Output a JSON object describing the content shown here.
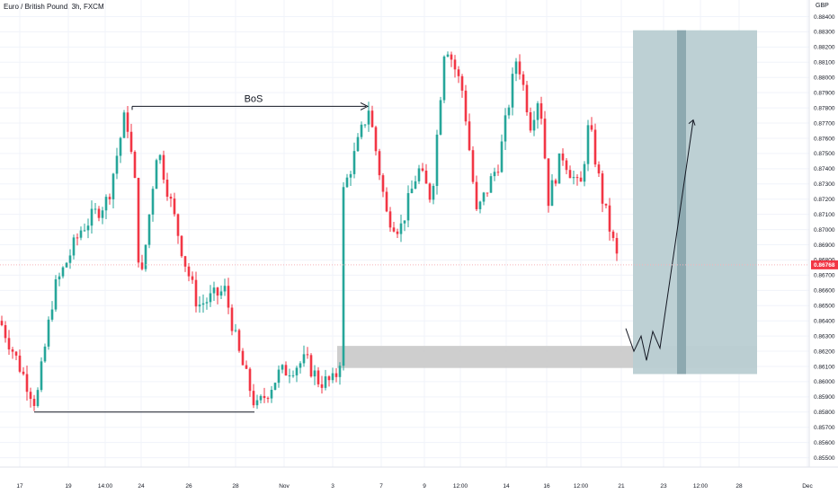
{
  "header": {
    "title": "Euro / British Pound, 3h, FXCM",
    "currency": "GBP"
  },
  "annotations": {
    "bos": "BoS"
  },
  "price_axis": {
    "labels": [
      "0.88400",
      "0.88300",
      "0.88200",
      "0.88100",
      "0.88000",
      "0.87900",
      "0.87800",
      "0.87700",
      "0.87600",
      "0.87500",
      "0.87400",
      "0.87300",
      "0.87200",
      "0.87100",
      "0.87000",
      "0.86900",
      "0.86800",
      "0.86700",
      "0.86600",
      "0.86500",
      "0.86400",
      "0.86300",
      "0.86200",
      "0.86100",
      "0.86000",
      "0.85900",
      "0.85800",
      "0.85700",
      "0.85600",
      "0.85500"
    ],
    "current_price": "0.86768"
  },
  "date_axis": {
    "labels": [
      "17",
      "19",
      "14:00",
      "24",
      "26",
      "28",
      "Nov",
      "3",
      "7",
      "9",
      "12:00",
      "14",
      "16",
      "12:00",
      "21",
      "23",
      "12:00",
      "28",
      "Dec"
    ]
  },
  "colors": {
    "up": "#26a69a",
    "down": "#f23645",
    "position_box": "#b9cdd2",
    "position_bar": "#8da9b0",
    "demand_zone": "#c9c9c9",
    "current_price_tag": "#f23645"
  },
  "chart_data": {
    "type": "candlestick",
    "symbol": "Euro / British Pound",
    "timeframe": "3h",
    "source": "FXCM",
    "price_range": [
      0.8548,
      0.8845
    ],
    "last_price": 0.86768,
    "close_path": [
      {
        "date": "Oct 16",
        "close": 0.864
      },
      {
        "date": "Oct 17",
        "close": 0.8585
      },
      {
        "date": "Oct 17",
        "close": 0.866
      },
      {
        "date": "Oct 19",
        "close": 0.87
      },
      {
        "date": "Oct 20",
        "close": 0.872
      },
      {
        "date": "Oct 23",
        "close": 0.8778
      },
      {
        "date": "Oct 24",
        "close": 0.873
      },
      {
        "date": "Oct 24",
        "close": 0.866
      },
      {
        "date": "Oct 25",
        "close": 0.8755
      },
      {
        "date": "Oct 26",
        "close": 0.868
      },
      {
        "date": "Oct 27",
        "close": 0.865
      },
      {
        "date": "Oct 27",
        "close": 0.866
      },
      {
        "date": "Oct 28",
        "close": 0.862
      },
      {
        "date": "Oct 29",
        "close": 0.8582
      },
      {
        "date": "Oct 30",
        "close": 0.8605
      },
      {
        "date": "Oct 31",
        "close": 0.8614
      },
      {
        "date": "Nov 1",
        "close": 0.86
      },
      {
        "date": "Nov 2",
        "close": 0.86
      },
      {
        "date": "Nov 3",
        "close": 0.8615
      },
      {
        "date": "Nov 3",
        "close": 0.8725
      },
      {
        "date": "Nov 6",
        "close": 0.878
      },
      {
        "date": "Nov 7",
        "close": 0.871
      },
      {
        "date": "Nov 8",
        "close": 0.87
      },
      {
        "date": "Nov 8",
        "close": 0.874
      },
      {
        "date": "Nov 9",
        "close": 0.872
      },
      {
        "date": "Nov 10",
        "close": 0.8825
      },
      {
        "date": "Nov 10",
        "close": 0.879
      },
      {
        "date": "Nov 13",
        "close": 0.871
      },
      {
        "date": "Nov 14",
        "close": 0.8745
      },
      {
        "date": "Nov 14",
        "close": 0.8815
      },
      {
        "date": "Nov 15",
        "close": 0.877
      },
      {
        "date": "Nov 15",
        "close": 0.879
      },
      {
        "date": "Nov 16",
        "close": 0.872
      },
      {
        "date": "Nov 17",
        "close": 0.875
      },
      {
        "date": "Nov 17",
        "close": 0.8725
      },
      {
        "date": "Nov 20",
        "close": 0.877
      },
      {
        "date": "Nov 20",
        "close": 0.872
      },
      {
        "date": "Nov 21",
        "close": 0.8677
      }
    ],
    "annotations": [
      {
        "type": "horizontal_line",
        "price": 0.8781,
        "from": "Oct 23",
        "to": "Nov 6",
        "label": "BoS"
      },
      {
        "type": "horizontal_line",
        "price": 0.858,
        "from": "Oct 17",
        "to": "Oct 29"
      },
      {
        "type": "zone",
        "top": 0.86235,
        "bottom": 0.8609,
        "from": "Nov 3",
        "to": "Nov 28"
      },
      {
        "type": "long_position",
        "top": 0.8831,
        "bottom": 0.8605,
        "from": "Nov 21",
        "to": "Nov 28"
      },
      {
        "type": "projection_path",
        "points": [
          [
            0.8635,
            "Nov 21"
          ],
          [
            0.862,
            "Nov 22"
          ],
          [
            0.863,
            "Nov 22"
          ],
          [
            0.8614,
            "Nov 22"
          ],
          [
            0.8633,
            "Nov 23"
          ],
          [
            0.8622,
            "Nov 23"
          ],
          [
            0.8772,
            "Nov 24"
          ]
        ]
      }
    ]
  }
}
